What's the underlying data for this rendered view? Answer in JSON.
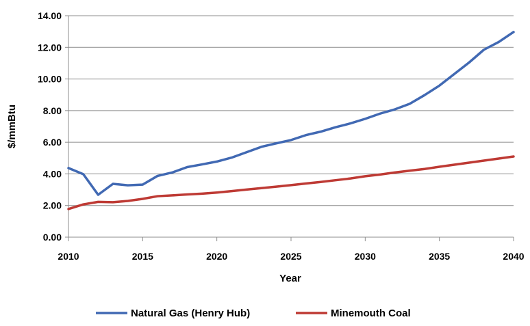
{
  "chart_data": {
    "type": "line",
    "title": "",
    "xlabel": "Year",
    "ylabel": "$/mmBtu",
    "xlim": [
      2010,
      2040
    ],
    "ylim": [
      0,
      14
    ],
    "x_ticks": [
      "2010",
      "2015",
      "2020",
      "2025",
      "2030",
      "2035",
      "2040"
    ],
    "y_ticks": [
      "0.00",
      "2.00",
      "4.00",
      "6.00",
      "8.00",
      "10.00",
      "12.00",
      "14.00"
    ],
    "grid": "horizontal",
    "legend_position": "bottom",
    "x": [
      2010,
      2011,
      2012,
      2013,
      2014,
      2015,
      2016,
      2017,
      2018,
      2019,
      2020,
      2021,
      2022,
      2023,
      2024,
      2025,
      2026,
      2027,
      2028,
      2029,
      2030,
      2031,
      2032,
      2033,
      2034,
      2035,
      2036,
      2037,
      2038,
      2039,
      2040
    ],
    "series": [
      {
        "name": "Natural Gas (Henry Hub)",
        "color": "#4169b3",
        "values": [
          4.37,
          3.98,
          2.68,
          3.37,
          3.28,
          3.32,
          3.87,
          4.09,
          4.43,
          4.6,
          4.78,
          5.03,
          5.37,
          5.71,
          5.93,
          6.14,
          6.45,
          6.67,
          6.95,
          7.19,
          7.48,
          7.81,
          8.08,
          8.43,
          8.98,
          9.58,
          10.31,
          11.04,
          11.85,
          12.34,
          12.97
        ]
      },
      {
        "name": "Minemouth Coal",
        "color": "#be3a34",
        "values": [
          1.78,
          2.07,
          2.23,
          2.21,
          2.29,
          2.42,
          2.59,
          2.64,
          2.7,
          2.75,
          2.82,
          2.91,
          3.01,
          3.1,
          3.19,
          3.29,
          3.39,
          3.49,
          3.6,
          3.71,
          3.85,
          3.96,
          4.09,
          4.2,
          4.31,
          4.45,
          4.58,
          4.71,
          4.84,
          4.97,
          5.1
        ]
      }
    ]
  }
}
